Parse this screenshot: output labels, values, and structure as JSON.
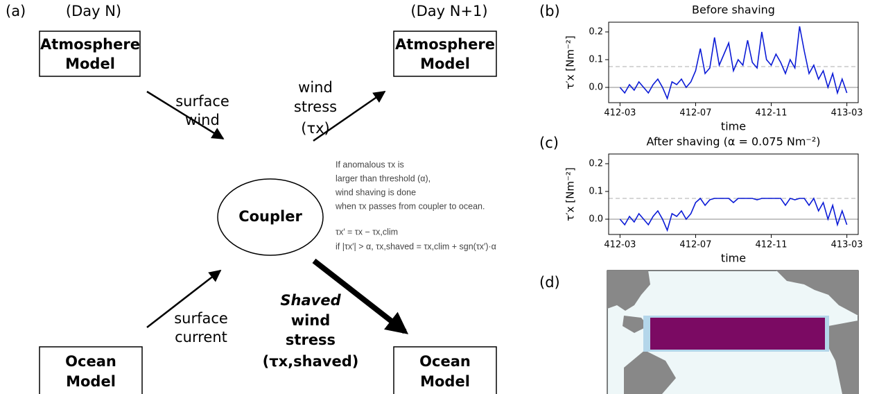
{
  "diagram": {
    "panel": "(a)",
    "day_left": "(Day N)",
    "day_right": "(Day N+1)",
    "atmosphere_left": [
      "Atmosphere",
      "Model"
    ],
    "atmosphere_right": [
      "Atmosphere",
      "Model"
    ],
    "ocean_left": [
      "Ocean",
      "Model"
    ],
    "ocean_right": [
      "Ocean",
      "Model"
    ],
    "coupler": "Coupler",
    "surface_wind": [
      "surface",
      "wind"
    ],
    "wind_stress": [
      "wind",
      "stress",
      "(τx)"
    ],
    "surface_current": [
      "surface",
      "current"
    ],
    "shaved": [
      "Shaved",
      "wind",
      "stress",
      "(τx,shaved)"
    ],
    "notes": [
      "If anomalous τx is",
      "larger than threshold (α),",
      "wind shaving is done",
      "when τx passes from coupler to ocean."
    ],
    "formulas": [
      "τx′ = τx − τx,clim",
      "if |τx′| > α,  τx,shaved = τx,clim + sgn(τx′)·α"
    ]
  },
  "chart_data": [
    {
      "type": "line",
      "panel": "(b)",
      "title": "Before shaving",
      "x_label": "time",
      "y_label": "τ′x [Nm⁻²]",
      "x": [
        0,
        0.25,
        0.5,
        0.75,
        1,
        1.25,
        1.5,
        1.75,
        2,
        2.25,
        2.5,
        2.75,
        3,
        3.25,
        3.5,
        3.75,
        4,
        4.25,
        4.5,
        4.75,
        5,
        5.25,
        5.5,
        5.75,
        6,
        6.25,
        6.5,
        6.75,
        7,
        7.25,
        7.5,
        7.75,
        8,
        8.25,
        8.5,
        8.75,
        9,
        9.25,
        9.5,
        9.75,
        10,
        10.25,
        10.5,
        10.75,
        11,
        11.25,
        11.5,
        11.75,
        12
      ],
      "series": [
        {
          "name": "τ′x",
          "color": "#0a1ad6",
          "values": [
            0.0,
            -0.02,
            0.01,
            -0.01,
            0.02,
            0.0,
            -0.02,
            0.01,
            0.03,
            0.0,
            -0.04,
            0.02,
            0.01,
            0.03,
            0.0,
            0.02,
            0.06,
            0.14,
            0.05,
            0.07,
            0.18,
            0.08,
            0.12,
            0.16,
            0.06,
            0.1,
            0.08,
            0.17,
            0.09,
            0.07,
            0.2,
            0.1,
            0.08,
            0.12,
            0.09,
            0.05,
            0.1,
            0.07,
            0.22,
            0.13,
            0.05,
            0.08,
            0.03,
            0.06,
            0.0,
            0.05,
            -0.02,
            0.03,
            -0.02
          ]
        }
      ],
      "hlines": [
        {
          "value": 0,
          "color": "#b0b0b0",
          "style": "solid"
        },
        {
          "value": 0.075,
          "color": "#c8c8c8",
          "style": "dashed"
        }
      ],
      "xlim": [
        -0.6,
        12.6
      ],
      "xticks": [
        {
          "value": 0,
          "label": "412-03"
        },
        {
          "value": 4,
          "label": "412-07"
        },
        {
          "value": 8,
          "label": "412-11"
        },
        {
          "value": 12,
          "label": "413-03"
        }
      ],
      "ylim": [
        -0.055,
        0.235
      ],
      "yticks": [
        {
          "value": 0,
          "label": "0.0"
        },
        0.1,
        0.2
      ]
    },
    {
      "type": "line",
      "panel": "(c)",
      "title": "After shaving (α = 0.075 Nm⁻²)",
      "x_label": "time",
      "y_label": "τ′x [Nm⁻²]",
      "x": [
        0,
        0.25,
        0.5,
        0.75,
        1,
        1.25,
        1.5,
        1.75,
        2,
        2.25,
        2.5,
        2.75,
        3,
        3.25,
        3.5,
        3.75,
        4,
        4.25,
        4.5,
        4.75,
        5,
        5.25,
        5.5,
        5.75,
        6,
        6.25,
        6.5,
        6.75,
        7,
        7.25,
        7.5,
        7.75,
        8,
        8.25,
        8.5,
        8.75,
        9,
        9.25,
        9.5,
        9.75,
        10,
        10.25,
        10.5,
        10.75,
        11,
        11.25,
        11.5,
        11.75,
        12
      ],
      "series": [
        {
          "name": "τ′x",
          "color": "#0a1ad6",
          "values": [
            0.0,
            -0.02,
            0.01,
            -0.01,
            0.02,
            0.0,
            -0.02,
            0.01,
            0.03,
            0.0,
            -0.04,
            0.02,
            0.01,
            0.03,
            0.0,
            0.02,
            0.06,
            0.075,
            0.05,
            0.07,
            0.075,
            0.075,
            0.075,
            0.075,
            0.06,
            0.075,
            0.075,
            0.075,
            0.075,
            0.07,
            0.075,
            0.075,
            0.075,
            0.075,
            0.075,
            0.05,
            0.075,
            0.07,
            0.075,
            0.075,
            0.05,
            0.075,
            0.03,
            0.06,
            0.0,
            0.05,
            -0.02,
            0.03,
            -0.02
          ]
        }
      ],
      "hlines": [
        {
          "value": 0,
          "color": "#b0b0b0",
          "style": "solid"
        },
        {
          "value": 0.075,
          "color": "#c8c8c8",
          "style": "dashed"
        }
      ],
      "xlim": [
        -0.6,
        12.6
      ],
      "xticks": [
        {
          "value": 0,
          "label": "412-03"
        },
        {
          "value": 4,
          "label": "412-07"
        },
        {
          "value": 8,
          "label": "412-11"
        },
        {
          "value": 12,
          "label": "413-03"
        }
      ],
      "ylim": [
        -0.055,
        0.235
      ],
      "yticks": [
        {
          "value": 0,
          "label": "0.0"
        },
        0.1,
        0.2
      ]
    }
  ],
  "map": {
    "panel": "(d)"
  }
}
